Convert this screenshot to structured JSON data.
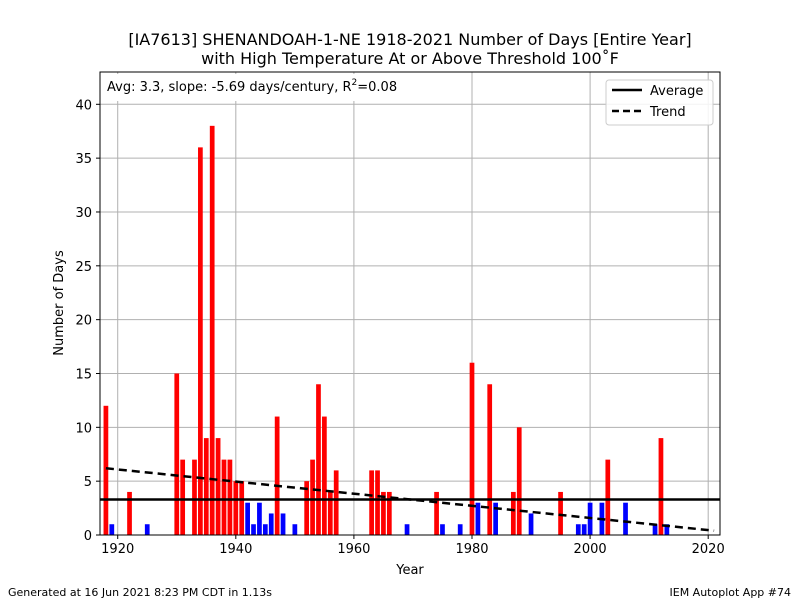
{
  "chart_data": {
    "type": "bar",
    "title_line1": "[IA7613] SHENANDOAH-1-NE 1918-2021 Number of Days [Entire Year]",
    "title_line2": "with High Temperature At or Above Threshold 100˚F",
    "xlabel": "Year",
    "ylabel": "Number of Days",
    "xlim": [
      1917,
      2022
    ],
    "ylim": [
      0,
      43
    ],
    "x_ticks": [
      1920,
      1940,
      1960,
      1980,
      2000,
      2020
    ],
    "y_ticks": [
      0,
      5,
      10,
      15,
      20,
      25,
      30,
      35,
      40
    ],
    "grid": true,
    "stats_text": "Avg: 3.3, slope: -5.69 days/century, R",
    "stats_sup": "2",
    "stats_suffix": "=0.08",
    "average": 3.3,
    "trend": {
      "start_year": 1918,
      "start_value": 6.2,
      "end_year": 2021,
      "end_value": 0.4
    },
    "colors": {
      "above": "#ff0000",
      "below": "#0000ff",
      "grid": "#b0b0b0"
    },
    "legend": {
      "position": "top-right",
      "items": [
        {
          "label": "Average",
          "style": "solid"
        },
        {
          "label": "Trend",
          "style": "dashed"
        }
      ]
    },
    "years": [
      1918,
      1919,
      1922,
      1925,
      1930,
      1931,
      1933,
      1934,
      1935,
      1936,
      1937,
      1938,
      1939,
      1940,
      1941,
      1942,
      1943,
      1944,
      1945,
      1946,
      1947,
      1948,
      1950,
      1952,
      1953,
      1954,
      1955,
      1956,
      1957,
      1963,
      1964,
      1965,
      1966,
      1969,
      1974,
      1975,
      1978,
      1980,
      1981,
      1983,
      1984,
      1987,
      1988,
      1990,
      1995,
      1998,
      1999,
      2000,
      2002,
      2003,
      2006,
      2011,
      2012,
      2013
    ],
    "values": [
      12,
      1,
      4,
      1,
      15,
      7,
      7,
      36,
      9,
      38,
      9,
      7,
      7,
      5,
      5,
      3,
      1,
      3,
      1,
      2,
      11,
      2,
      1,
      5,
      7,
      14,
      11,
      4,
      6,
      6,
      6,
      4,
      4,
      1,
      4,
      1,
      1,
      16,
      3,
      14,
      3,
      4,
      10,
      2,
      4,
      1,
      1,
      3,
      3,
      7,
      3,
      1,
      9,
      1
    ]
  },
  "footer": {
    "left": "Generated at 16 Jun 2021 8:23 PM CDT in 1.13s",
    "right": "IEM Autoplot App #74"
  }
}
